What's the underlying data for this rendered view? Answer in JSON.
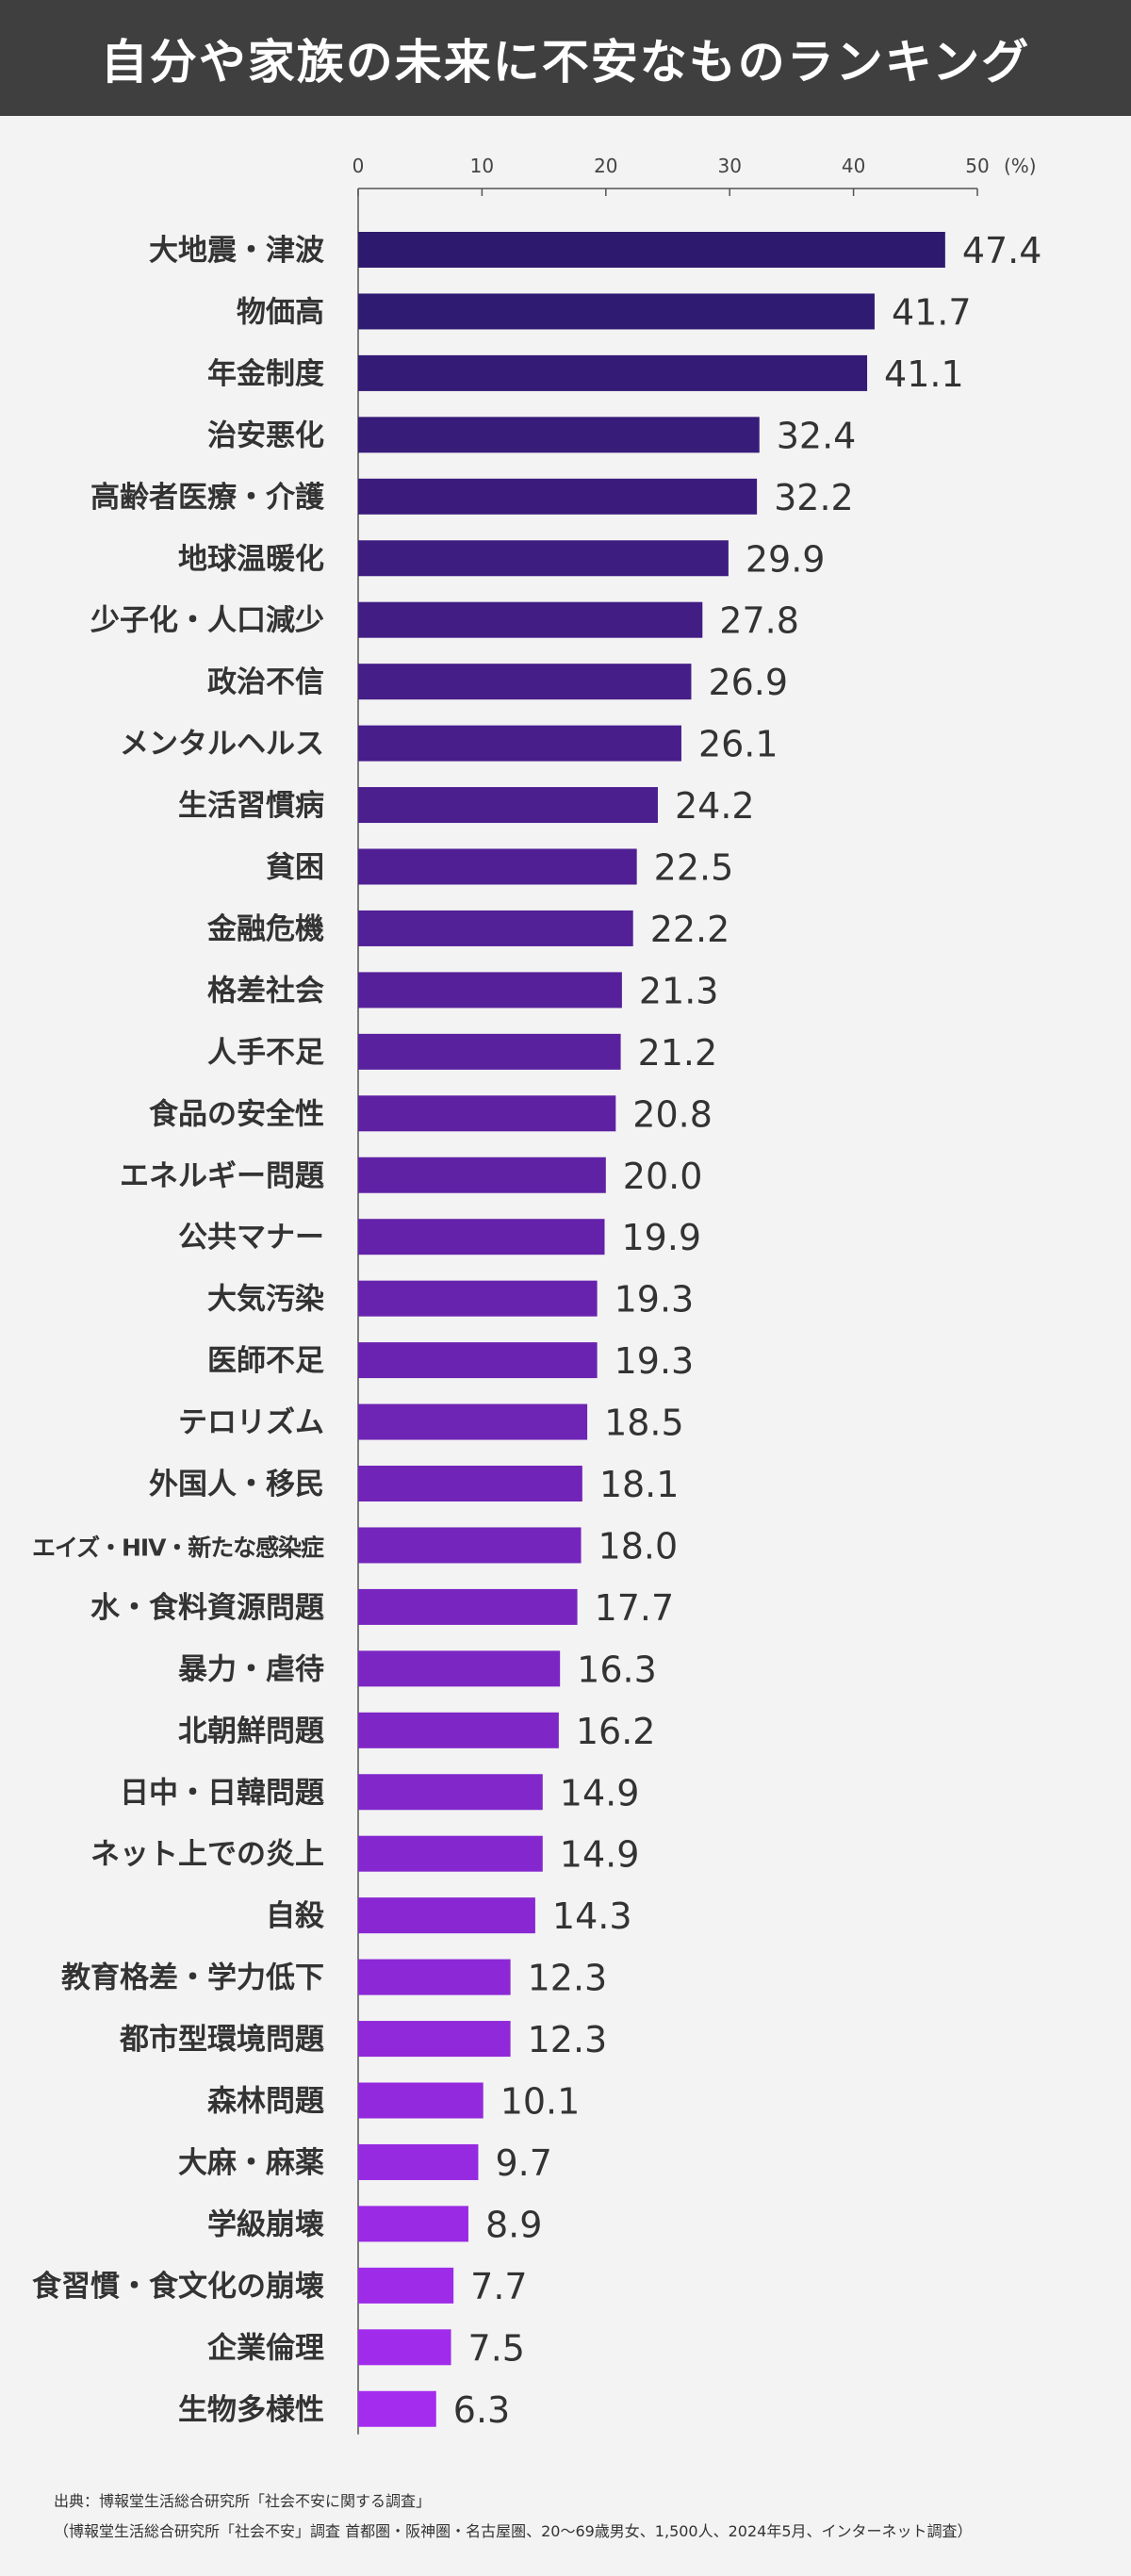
{
  "header": {
    "title": "自分や家族の未来に不安なものランキング"
  },
  "chart_data": {
    "type": "bar",
    "orientation": "horizontal",
    "title": "自分や家族の未来に不安なものランキング",
    "unit": "(%)",
    "xlim": [
      0,
      50
    ],
    "ticks": [
      0,
      10,
      20,
      30,
      40,
      50
    ],
    "color_start": "#2d1a6e",
    "color_end": "#a42cef",
    "categories": [
      "大地震・津波",
      "物価高",
      "年金制度",
      "治安悪化",
      "高齢者医療・介護",
      "地球温暖化",
      "少子化・人口減少",
      "政治不信",
      "メンタルヘルス",
      "生活習慣病",
      "貧困",
      "金融危機",
      "格差社会",
      "人手不足",
      "食品の安全性",
      "エネルギー問題",
      "公共マナー",
      "大気汚染",
      "医師不足",
      "テロリズム",
      "外国人・移民",
      "エイズ・HIV・新たな感染症",
      "水・食料資源問題",
      "暴力・虐待",
      "北朝鮮問題",
      "日中・日韓問題",
      "ネット上での炎上",
      "自殺",
      "教育格差・学力低下",
      "都市型環境問題",
      "森林問題",
      "大麻・麻薬",
      "学級崩壊",
      "食習慣・食文化の崩壊",
      "企業倫理",
      "生物多様性"
    ],
    "values": [
      47.4,
      41.7,
      41.1,
      32.4,
      32.2,
      29.9,
      27.8,
      26.9,
      26.1,
      24.2,
      22.5,
      22.2,
      21.3,
      21.2,
      20.8,
      20.0,
      19.9,
      19.3,
      19.3,
      18.5,
      18.1,
      18.0,
      17.7,
      16.3,
      16.2,
      14.9,
      14.9,
      14.3,
      12.3,
      12.3,
      10.1,
      9.7,
      8.9,
      7.7,
      7.5,
      6.3
    ],
    "value_labels": [
      "47.4",
      "41.7",
      "41.1",
      "32.4",
      "32.2",
      "29.9",
      "27.8",
      "26.9",
      "26.1",
      "24.2",
      "22.5",
      "22.2",
      "21.3",
      "21.2",
      "20.8",
      "20.0",
      "19.9",
      "19.3",
      "19.3",
      "18.5",
      "18.1",
      "18.0",
      "17.7",
      "16.3",
      "16.2",
      "14.9",
      "14.9",
      "14.3",
      "12.3",
      "12.3",
      "10.1",
      "9.7",
      "8.9",
      "7.7",
      "7.5",
      "6.3"
    ]
  },
  "footer": {
    "source": "出典：博報堂生活総合研究所「社会不安に関する調査」",
    "note": "（博報堂生活総合研究所「社会不安」調査 首都圏・阪神圏・名古屋圏、20～69歳男女、1,500人、2024年5月、インターネット調査）"
  }
}
